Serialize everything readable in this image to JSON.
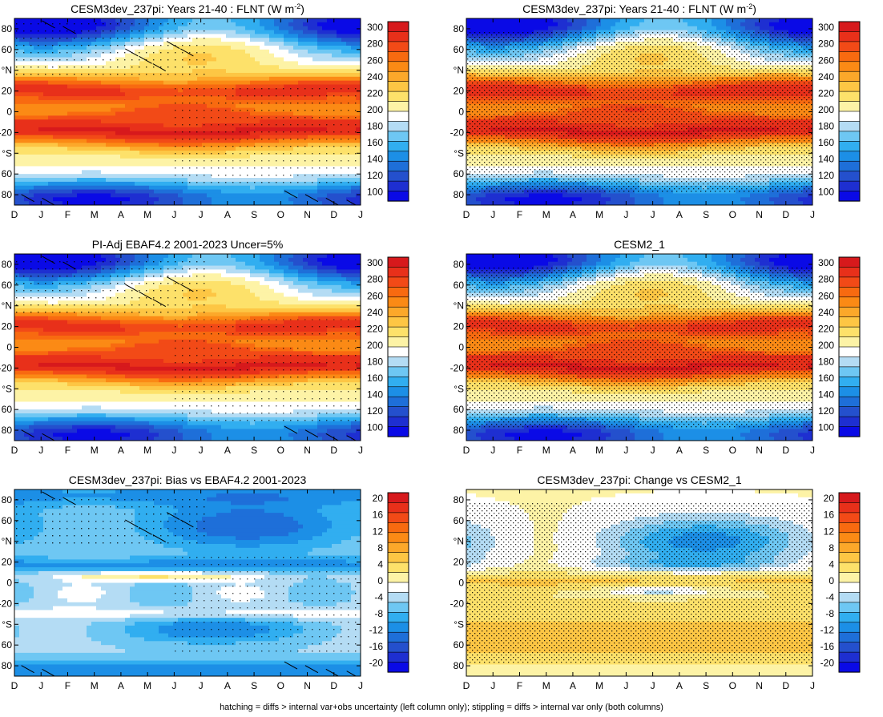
{
  "chart_data": [
    {
      "type": "heatmap",
      "title": "CESM3dev_237pi: Years 21-40 : FLNT (W m⁻²)",
      "title_main": "CESM3dev_237pi: Years 21-40 : FLNT (W m",
      "title_sup": "-2",
      "title_close": ")",
      "kind": "abs",
      "hatch": true,
      "stipple": "light"
    },
    {
      "type": "heatmap",
      "title": "CESM3dev_237pi: Years 21-40 : FLNT (W m⁻²)",
      "title_main": "CESM3dev_237pi: Years 21-40 : FLNT (W m",
      "title_sup": "-2",
      "title_close": ")",
      "kind": "abs",
      "hatch": false,
      "stipple": "dense"
    },
    {
      "type": "heatmap",
      "title": "PI-Adj EBAF4.2 2001-2023 Uncer=5%",
      "title_main": "PI-Adj EBAF4.2 2001-2023 Uncer=5%",
      "title_sup": "",
      "title_close": "",
      "kind": "abs",
      "hatch": true,
      "stipple": "light"
    },
    {
      "type": "heatmap",
      "title": "CESM2_1",
      "title_main": "CESM2_1",
      "title_sup": "",
      "title_close": "",
      "kind": "abs",
      "hatch": false,
      "stipple": "dense"
    },
    {
      "type": "heatmap",
      "title": "CESM3dev_237pi: Bias vs EBAF4.2 2001-2023",
      "title_main": "CESM3dev_237pi: Bias vs EBAF4.2 2001-2023",
      "title_sup": "",
      "title_close": "",
      "kind": "bias",
      "hatch": true,
      "stipple": "light"
    },
    {
      "type": "heatmap",
      "title": "CESM3dev_237pi: Change vs CESM2_1",
      "title_main": "CESM3dev_237pi: Change vs CESM2_1",
      "title_sup": "",
      "title_close": "",
      "kind": "change",
      "hatch": false,
      "stipple": "dense"
    }
  ],
  "axes": {
    "x_ticks": [
      "D",
      "J",
      "F",
      "M",
      "A",
      "M",
      "J",
      "J",
      "A",
      "S",
      "O",
      "N",
      "D",
      "J"
    ],
    "y_ticks": [
      "80",
      "60",
      "°N",
      "20",
      "0",
      "-20",
      "°S",
      "60",
      "80"
    ],
    "y_tick_values": [
      80,
      60,
      40,
      20,
      0,
      -20,
      -40,
      -60,
      -80
    ],
    "ylim": [
      -90,
      90
    ]
  },
  "colorbars": {
    "abs": {
      "labels": [
        "300",
        "280",
        "260",
        "240",
        "220",
        "200",
        "180",
        "160",
        "140",
        "120",
        "100"
      ],
      "colors": [
        "#d7191c",
        "#e8301a",
        "#f24a17",
        "#f86a10",
        "#fb8a15",
        "#fca82a",
        "#fdc644",
        "#fde16a",
        "#fdf3a6",
        "#ffffff",
        "#b4dcf4",
        "#6ec7f3",
        "#31aef0",
        "#1c8fe6",
        "#1e6fd9",
        "#2450cd",
        "#1e2fd1",
        "#0a0ae6"
      ]
    },
    "diff": {
      "labels": [
        "20",
        "16",
        "12",
        "8",
        "4",
        "0",
        "-4",
        "-8",
        "-12",
        "-16",
        "-20"
      ],
      "colors": [
        "#d7191c",
        "#e8301a",
        "#f24a17",
        "#f86a10",
        "#fb8a15",
        "#fca82a",
        "#fdc644",
        "#fde16a",
        "#fdf3a6",
        "#ffffff",
        "#b4dcf4",
        "#6ec7f3",
        "#31aef0",
        "#1c8fe6",
        "#1e6fd9",
        "#2450cd",
        "#1e2fd1",
        "#0a0ae6"
      ]
    }
  },
  "footer": "hatching = diffs > internal var+obs uncertainty (left column only); stippling = diffs > internal var only (both columns)"
}
